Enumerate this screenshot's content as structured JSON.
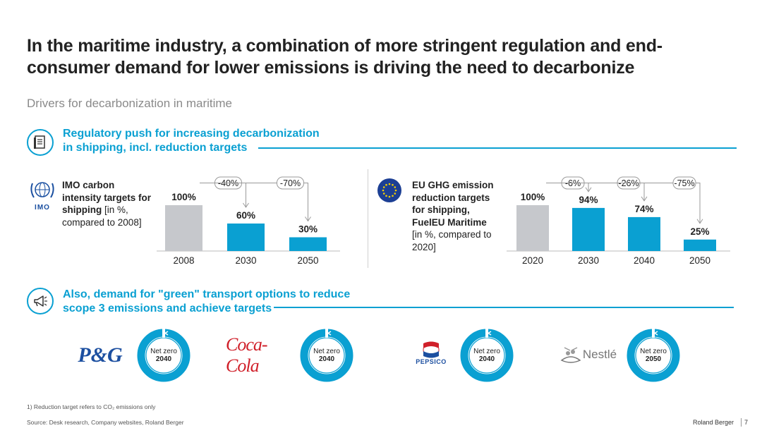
{
  "title": "In the maritime industry, a combination of more stringent regulation and end-consumer demand for lower emissions is driving the need to decarbonize",
  "subtitle": "Drivers for decarbonization in maritime",
  "section1": {
    "title_line1": "Regulatory push for increasing decarbonization",
    "title_line2": "in shipping, incl. reduction targets",
    "icon": "document-icon"
  },
  "section2": {
    "title_line1": "Also, demand for \"green\" transport options to reduce",
    "title_line2": "scope 3 emissions and achieve targets",
    "icon": "megaphone-icon"
  },
  "imo": {
    "logo_text": "IMO",
    "desc_bold": "IMO carbon intensity targets for shipping",
    "desc_rest": " [in %, compared to 2008]"
  },
  "eu": {
    "desc_bold": "EU GHG emission reduction targets for shipping, FuelEU Maritime",
    "desc_rest": " [in %, compared to 2020]"
  },
  "chart_data": [
    {
      "type": "bar",
      "title": "IMO carbon intensity targets for shipping [in %, compared to 2008]",
      "categories": [
        "2008",
        "2030",
        "2050"
      ],
      "values": [
        100,
        60,
        30
      ],
      "labels": [
        "100%",
        "60%",
        "30%"
      ],
      "changes": [
        "-40%",
        "-70%"
      ],
      "ylim": [
        0,
        100
      ]
    },
    {
      "type": "bar",
      "title": "EU GHG emission reduction targets for shipping, FuelEU Maritime [in %, compared to 2020]",
      "categories": [
        "2020",
        "2030",
        "2040",
        "2050"
      ],
      "values": [
        100,
        94,
        74,
        25
      ],
      "labels": [
        "100%",
        "94%",
        "74%",
        "25%"
      ],
      "changes": [
        "-6%",
        "-26%",
        "-75%"
      ],
      "ylim": [
        0,
        100
      ]
    }
  ],
  "companies": [
    {
      "name": "P&G",
      "target_label": "Net zero",
      "target_year": "2040"
    },
    {
      "name": "Coca-Cola",
      "target_label": "Net zero",
      "target_year": "2040"
    },
    {
      "name": "PEPSICO",
      "target_label": "Net zero",
      "target_year": "2040"
    },
    {
      "name": "Nestlé",
      "target_label": "Net zero",
      "target_year": "2050"
    }
  ],
  "footnote": "1) Reduction target refers to CO₂ emissions only",
  "source": "Source: Desk research, Company websites, Roland Berger",
  "brand": "Roland Berger",
  "page_number": "7",
  "colors": {
    "accent": "#0aa0d2",
    "base_bar": "#c6c8cc",
    "text": "#222222"
  }
}
